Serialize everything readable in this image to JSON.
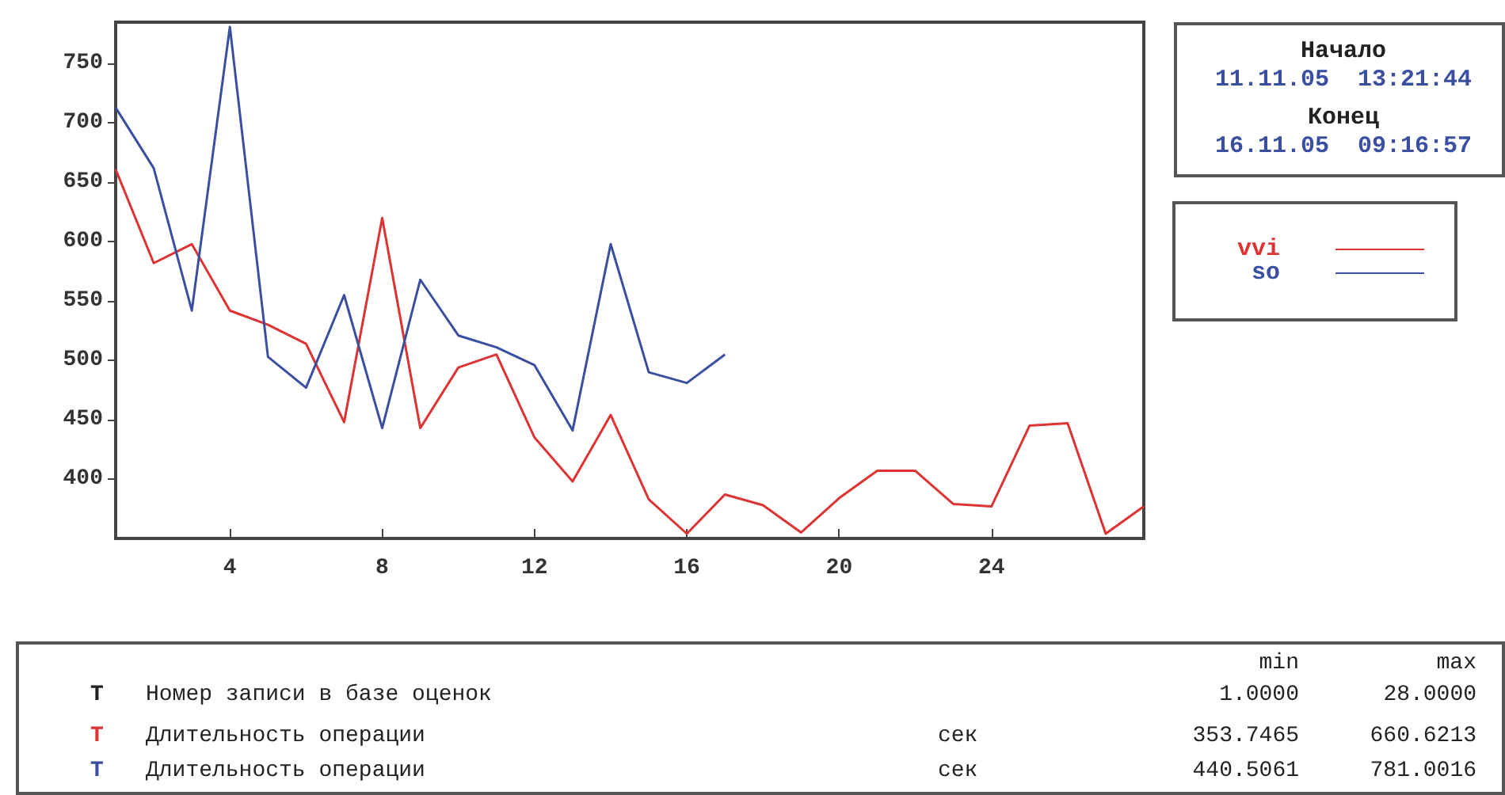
{
  "chart_data": {
    "type": "line",
    "x": [
      1,
      2,
      3,
      4,
      5,
      6,
      7,
      8,
      9,
      10,
      11,
      12,
      13,
      14,
      15,
      16,
      17,
      18,
      19,
      20,
      21,
      22,
      23,
      24,
      25,
      26,
      27,
      28
    ],
    "series": [
      {
        "name": "vvi",
        "color": "#dd3333",
        "values": [
          661,
          582,
          598,
          542,
          530,
          514,
          448,
          620,
          443,
          494,
          505,
          435,
          398,
          454,
          383,
          354,
          387,
          378,
          355,
          384,
          407,
          407,
          379,
          377,
          445,
          447,
          354,
          377
        ]
      },
      {
        "name": "so",
        "color": "#3a4fa0",
        "values": [
          713,
          662,
          542,
          781,
          503,
          477,
          555,
          443,
          568,
          521,
          511,
          496,
          441,
          598,
          490,
          481,
          505,
          null,
          null,
          null,
          null,
          null,
          null,
          null,
          null,
          null,
          null,
          null
        ]
      }
    ],
    "xlim": [
      1,
      28
    ],
    "xticks": [
      4,
      8,
      12,
      16,
      20,
      24
    ],
    "ylim": [
      350,
      785
    ],
    "yticks": [
      400,
      450,
      500,
      550,
      600,
      650,
      700,
      750
    ],
    "grid": false,
    "legend": "right",
    "marker": "none",
    "line_style": "solid",
    "annotations": [
      "Начало",
      "11.11.05  13:21:44",
      "Конец",
      "16.11.05  09:16:57",
      "min",
      "max",
      "T",
      "Номер записи в базе оценок",
      "1.0000",
      "28.0000",
      "T",
      "Длительность операции",
      "сек",
      "353.7465",
      "660.6213",
      "T",
      "Длительность операции",
      "сек",
      "440.5061",
      "781.0016"
    ]
  }
}
